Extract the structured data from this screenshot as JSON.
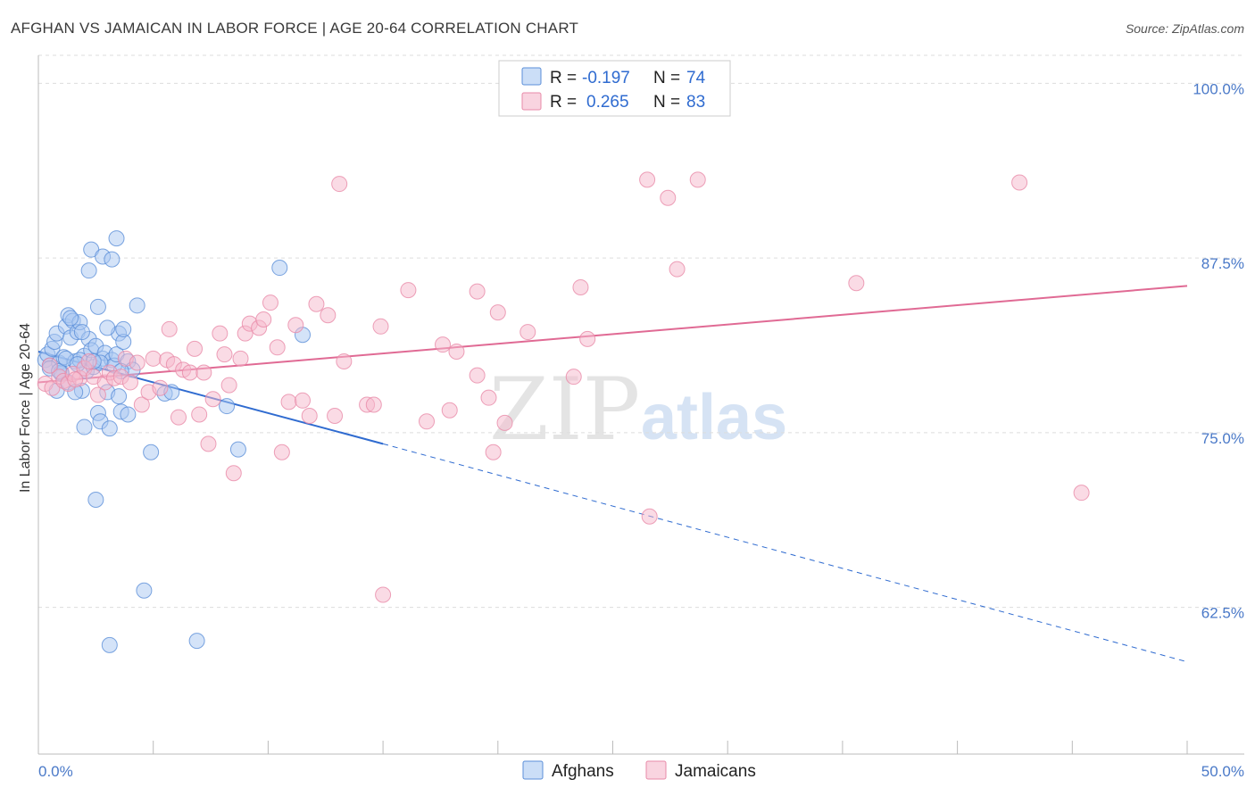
{
  "title": "AFGHAN VS JAMAICAN IN LABOR FORCE | AGE 20-64 CORRELATION CHART",
  "source": "Source: ZipAtlas.com",
  "watermark": {
    "zip": "ZIP",
    "atlas": "atlas"
  },
  "colors": {
    "afghans_fill": "#a9c8f2",
    "afghans_stroke": "#5b8fd8",
    "afghans_line": "#2f6bd0",
    "jamaicans_fill": "#f5b8cc",
    "jamaicans_stroke": "#e88aa8",
    "jamaicans_line": "#e06a94",
    "grid": "#dddddd",
    "axis_label": "#4a79c8"
  },
  "legend": {
    "r_label": "R =",
    "n_label": "N =",
    "afghans": {
      "r": "-0.197",
      "n": "74"
    },
    "jamaicans": {
      "r": "0.265",
      "n": "83"
    }
  },
  "chart_data": {
    "type": "scatter",
    "title": "AFGHAN VS JAMAICAN IN LABOR FORCE | AGE 20-64 CORRELATION CHART",
    "xlabel": "",
    "ylabel": "In Labor Force | Age 20-64",
    "xlim": [
      0,
      50
    ],
    "ylim": [
      52,
      102
    ],
    "x_tick_labels": [
      "0.0%",
      "50.0%"
    ],
    "y_ticks": [
      62.5,
      75.0,
      87.5,
      100.0
    ],
    "y_tick_labels": [
      "62.5%",
      "75.0%",
      "87.5%",
      "100.0%"
    ],
    "grid": true,
    "legend_position": "bottom-center",
    "series": [
      {
        "name": "Afghans",
        "r": -0.197,
        "n": 74,
        "trend": {
          "x1": 0,
          "y1": 80.8,
          "x2": 15,
          "y2": 74.2,
          "dash_to_x": 50,
          "dash_to_y": 58.6
        },
        "points": [
          [
            0.3,
            80.2
          ],
          [
            0.4,
            80.6
          ],
          [
            0.5,
            79.8
          ],
          [
            0.6,
            81.0
          ],
          [
            0.7,
            81.5
          ],
          [
            0.8,
            82.1
          ],
          [
            0.9,
            80.0
          ],
          [
            1.0,
            79.2
          ],
          [
            1.1,
            80.4
          ],
          [
            1.2,
            82.6
          ],
          [
            1.3,
            83.4
          ],
          [
            1.4,
            81.8
          ],
          [
            1.5,
            83.0
          ],
          [
            1.6,
            80.1
          ],
          [
            1.7,
            82.2
          ],
          [
            1.8,
            82.9
          ],
          [
            1.9,
            78.0
          ],
          [
            2.0,
            80.5
          ],
          [
            2.1,
            79.4
          ],
          [
            2.2,
            81.7
          ],
          [
            2.3,
            80.9
          ],
          [
            2.4,
            79.7
          ],
          [
            2.5,
            81.2
          ],
          [
            2.6,
            76.4
          ],
          [
            2.7,
            75.8
          ],
          [
            2.8,
            80.3
          ],
          [
            2.9,
            80.7
          ],
          [
            3.0,
            77.9
          ],
          [
            3.1,
            75.3
          ],
          [
            3.2,
            80.2
          ],
          [
            3.3,
            79.8
          ],
          [
            3.4,
            80.6
          ],
          [
            3.5,
            82.1
          ],
          [
            3.6,
            76.5
          ],
          [
            3.7,
            81.5
          ],
          [
            3.9,
            80.1
          ],
          [
            4.1,
            79.5
          ],
          [
            4.3,
            84.1
          ],
          [
            0.5,
            79.6
          ],
          [
            0.8,
            78.0
          ],
          [
            1.0,
            79.3
          ],
          [
            1.3,
            78.6
          ],
          [
            1.6,
            77.9
          ],
          [
            2.0,
            75.4
          ],
          [
            2.2,
            86.6
          ],
          [
            2.3,
            88.1
          ],
          [
            2.8,
            87.6
          ],
          [
            3.2,
            87.4
          ],
          [
            3.4,
            88.9
          ],
          [
            2.6,
            84.0
          ],
          [
            3.0,
            82.5
          ],
          [
            3.7,
            82.4
          ],
          [
            1.9,
            82.2
          ],
          [
            1.4,
            83.2
          ],
          [
            2.5,
            70.2
          ],
          [
            3.1,
            59.8
          ],
          [
            4.6,
            63.7
          ],
          [
            6.9,
            60.1
          ],
          [
            4.9,
            73.6
          ],
          [
            8.7,
            73.8
          ],
          [
            10.5,
            86.8
          ],
          [
            11.5,
            82.0
          ],
          [
            8.2,
            76.9
          ],
          [
            5.5,
            77.8
          ],
          [
            5.8,
            77.9
          ],
          [
            3.9,
            76.3
          ],
          [
            3.5,
            77.6
          ],
          [
            2.7,
            80.0
          ],
          [
            1.8,
            80.2
          ],
          [
            0.9,
            79.4
          ],
          [
            1.2,
            80.3
          ],
          [
            2.4,
            80.1
          ],
          [
            1.7,
            79.9
          ],
          [
            3.6,
            79.4
          ]
        ]
      },
      {
        "name": "Jamaicans",
        "r": 0.265,
        "n": 83,
        "trend": {
          "x1": 0,
          "y1": 78.6,
          "x2": 50,
          "y2": 85.5
        },
        "points": [
          [
            0.3,
            78.5
          ],
          [
            0.6,
            78.2
          ],
          [
            0.9,
            79.0
          ],
          [
            1.1,
            78.7
          ],
          [
            1.3,
            78.5
          ],
          [
            1.5,
            79.2
          ],
          [
            1.8,
            78.9
          ],
          [
            2.0,
            79.6
          ],
          [
            2.2,
            80.1
          ],
          [
            2.4,
            79.0
          ],
          [
            2.6,
            77.7
          ],
          [
            2.9,
            78.6
          ],
          [
            3.1,
            79.3
          ],
          [
            3.3,
            78.9
          ],
          [
            3.6,
            79.0
          ],
          [
            3.8,
            80.3
          ],
          [
            4.0,
            78.6
          ],
          [
            4.3,
            80.0
          ],
          [
            4.5,
            77.0
          ],
          [
            4.8,
            77.9
          ],
          [
            5.0,
            80.3
          ],
          [
            5.3,
            78.2
          ],
          [
            5.6,
            80.2
          ],
          [
            5.9,
            79.9
          ],
          [
            5.7,
            82.4
          ],
          [
            6.1,
            76.1
          ],
          [
            6.3,
            79.5
          ],
          [
            6.6,
            79.3
          ],
          [
            6.8,
            81.0
          ],
          [
            7.0,
            76.3
          ],
          [
            7.2,
            79.3
          ],
          [
            7.4,
            74.2
          ],
          [
            7.6,
            77.4
          ],
          [
            7.9,
            82.1
          ],
          [
            8.1,
            80.6
          ],
          [
            8.3,
            78.4
          ],
          [
            8.5,
            72.1
          ],
          [
            8.8,
            80.3
          ],
          [
            9.0,
            82.1
          ],
          [
            9.2,
            82.8
          ],
          [
            9.6,
            82.5
          ],
          [
            9.8,
            83.1
          ],
          [
            10.1,
            84.3
          ],
          [
            10.4,
            81.1
          ],
          [
            10.6,
            73.6
          ],
          [
            10.9,
            77.2
          ],
          [
            11.2,
            82.7
          ],
          [
            11.5,
            77.3
          ],
          [
            11.8,
            76.2
          ],
          [
            12.1,
            84.2
          ],
          [
            12.6,
            83.4
          ],
          [
            12.9,
            76.2
          ],
          [
            13.1,
            92.8
          ],
          [
            13.3,
            80.1
          ],
          [
            14.3,
            77.0
          ],
          [
            14.6,
            77.0
          ],
          [
            14.9,
            82.6
          ],
          [
            15.0,
            63.4
          ],
          [
            16.1,
            85.2
          ],
          [
            16.9,
            75.8
          ],
          [
            17.6,
            81.3
          ],
          [
            18.2,
            80.8
          ],
          [
            17.9,
            76.6
          ],
          [
            19.1,
            79.1
          ],
          [
            19.1,
            85.1
          ],
          [
            19.6,
            77.5
          ],
          [
            19.8,
            73.6
          ],
          [
            20.0,
            83.6
          ],
          [
            20.3,
            75.7
          ],
          [
            21.3,
            82.2
          ],
          [
            23.3,
            79.0
          ],
          [
            23.6,
            85.4
          ],
          [
            23.9,
            81.7
          ],
          [
            26.5,
            93.1
          ],
          [
            26.6,
            69.0
          ],
          [
            27.4,
            91.8
          ],
          [
            27.8,
            86.7
          ],
          [
            28.7,
            93.1
          ],
          [
            35.6,
            85.7
          ],
          [
            42.7,
            92.9
          ],
          [
            45.4,
            70.7
          ],
          [
            0.5,
            79.8
          ],
          [
            1.6,
            78.8
          ]
        ]
      }
    ]
  },
  "bottom_legend": {
    "afghans": "Afghans",
    "jamaicans": "Jamaicans"
  }
}
